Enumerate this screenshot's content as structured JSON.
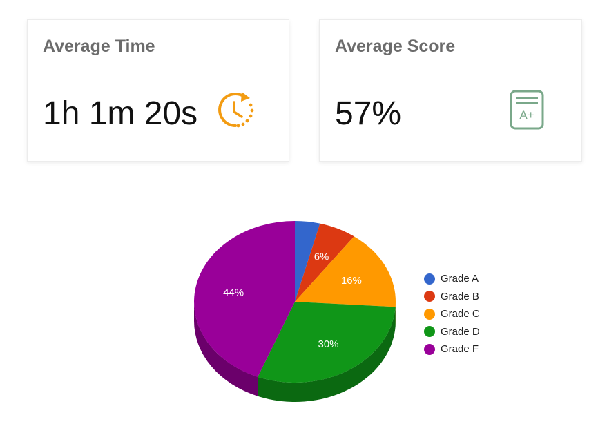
{
  "cards": [
    {
      "title": "Average Time",
      "value": "1h 1m 20s",
      "icon": "clock-refresh-icon",
      "icon_color": "#f39c12"
    },
    {
      "title": "Average Score",
      "value": "57%",
      "icon": "grade-a-plus-icon",
      "icon_color": "#7aa88a"
    }
  ],
  "legend": [
    {
      "label": "Grade A",
      "color": "#3366cc"
    },
    {
      "label": "Grade B",
      "color": "#dc3912"
    },
    {
      "label": "Grade C",
      "color": "#ff9900"
    },
    {
      "label": "Grade D",
      "color": "#109618"
    },
    {
      "label": "Grade F",
      "color": "#990099"
    }
  ],
  "chart_data": {
    "type": "pie",
    "title": "",
    "is3D": true,
    "categories": [
      "Grade A",
      "Grade B",
      "Grade C",
      "Grade D",
      "Grade F"
    ],
    "values": [
      4,
      6,
      16,
      30,
      44
    ],
    "labels": [
      "",
      "6%",
      "16%",
      "30%",
      "44%"
    ],
    "colors": [
      "#3366cc",
      "#dc3912",
      "#ff9900",
      "#109618",
      "#990099"
    ],
    "legend_position": "right"
  }
}
